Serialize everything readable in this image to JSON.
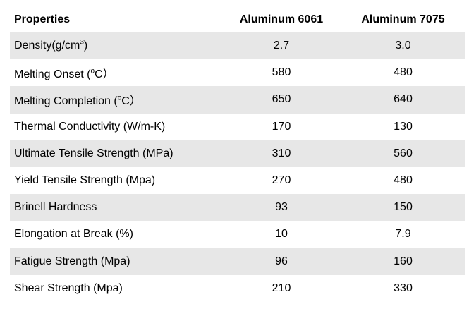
{
  "header": {
    "col_property": "Properties",
    "col_6061": "Aluminum 6061",
    "col_7075": "Aluminum 7075"
  },
  "rows": [
    {
      "label_main": "Density(g/cm",
      "label_sup": "3",
      "label_tail": ")",
      "v6061": "2.7",
      "v7075": "3.0"
    },
    {
      "label_main": "Melting Onset (",
      "label_sup": "o",
      "label_tail": "C）",
      "v6061": "580",
      "v7075": "480"
    },
    {
      "label_main": "Melting Completion (",
      "label_sup": "o",
      "label_tail": "C）",
      "v6061": "650",
      "v7075": "640"
    },
    {
      "label_main": "Thermal Conductivity (W/m-K)",
      "label_sup": "",
      "label_tail": "",
      "v6061": "170",
      "v7075": "130"
    },
    {
      "label_main": "Ultimate Tensile Strength (MPa)",
      "label_sup": "",
      "label_tail": "",
      "v6061": "310",
      "v7075": "560"
    },
    {
      "label_main": "Yield Tensile Strength (Mpa)",
      "label_sup": "",
      "label_tail": "",
      "v6061": "270",
      "v7075": "480"
    },
    {
      "label_main": "Brinell Hardness",
      "label_sup": "",
      "label_tail": "",
      "v6061": "93",
      "v7075": "150"
    },
    {
      "label_main": "Elongation at Break (%)",
      "label_sup": "",
      "label_tail": "",
      "v6061": "10",
      "v7075": "7.9"
    },
    {
      "label_main": "Fatigue Strength (Mpa)",
      "label_sup": "",
      "label_tail": "",
      "v6061": "96",
      "v7075": "160"
    },
    {
      "label_main": "Shear Strength (Mpa)",
      "label_sup": "",
      "label_tail": "",
      "v6061": "210",
      "v7075": "330"
    }
  ],
  "colors": {
    "shaded_row": "#e7e7e7",
    "plain_row": "#ffffff"
  }
}
